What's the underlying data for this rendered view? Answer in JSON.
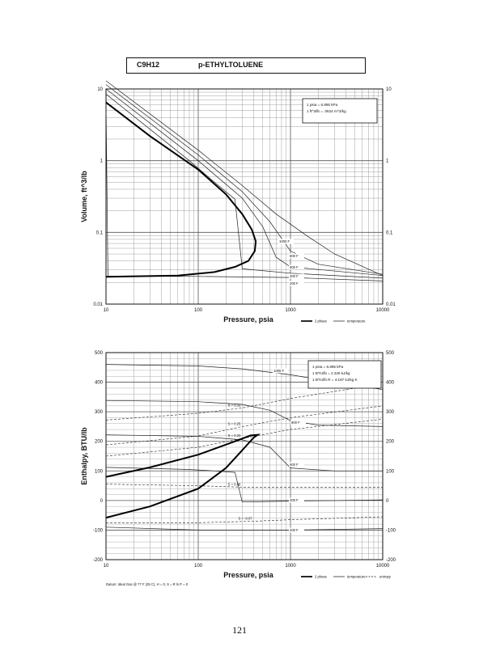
{
  "header": {
    "formula": "C9H12",
    "name": "p-ETHYLTOLUENE"
  },
  "page_number": "121",
  "chart_data": [
    {
      "type": "line",
      "xlabel": "Pressure,  psia",
      "ylabel": "Volume, ft^3/lb",
      "x_scale": "log",
      "y_scale": "log",
      "xlim": [
        10,
        10000
      ],
      "ylim": [
        0.01,
        10
      ],
      "x_ticks": [
        "10",
        "100",
        "1000",
        "10000"
      ],
      "y_ticks_left": [
        "0.01",
        "0.1",
        "1",
        "10"
      ],
      "y_ticks_right": [
        "0.01",
        "0.1",
        "1",
        "10"
      ],
      "grid": true,
      "legend_position": "bottom-right",
      "legend": [
        {
          "label": "2 phase",
          "style": "thick"
        },
        {
          "label": "temperature",
          "style": "thin"
        }
      ],
      "conversion_notes": [
        "1 psia = 6.895 kPa",
        "1 ft^3/lb = .0624 m^3/kg"
      ],
      "two_phase": [
        {
          "x": 10,
          "y": 6.5
        },
        {
          "x": 30,
          "y": 2.2
        },
        {
          "x": 100,
          "y": 0.75
        },
        {
          "x": 200,
          "y": 0.34
        },
        {
          "x": 300,
          "y": 0.18
        },
        {
          "x": 380,
          "y": 0.11
        },
        {
          "x": 420,
          "y": 0.075
        },
        {
          "x": 410,
          "y": 0.055
        },
        {
          "x": 350,
          "y": 0.04
        },
        {
          "x": 250,
          "y": 0.033
        },
        {
          "x": 150,
          "y": 0.028
        },
        {
          "x": 60,
          "y": 0.025
        },
        {
          "x": 10,
          "y": 0.024
        }
      ],
      "series": [
        {
          "name": "1000 F",
          "values": [
            {
              "x": 10,
              "y": 13
            },
            {
              "x": 100,
              "y": 1.4
            },
            {
              "x": 300,
              "y": 0.45
            },
            {
              "x": 700,
              "y": 0.18
            },
            {
              "x": 1500,
              "y": 0.09
            },
            {
              "x": 3000,
              "y": 0.05
            },
            {
              "x": 10000,
              "y": 0.025
            }
          ]
        },
        {
          "name": "800 F",
          "values": [
            {
              "x": 10,
              "y": 11.5
            },
            {
              "x": 100,
              "y": 1.2
            },
            {
              "x": 300,
              "y": 0.37
            },
            {
              "x": 600,
              "y": 0.14
            },
            {
              "x": 1000,
              "y": 0.055
            },
            {
              "x": 2000,
              "y": 0.036
            },
            {
              "x": 10000,
              "y": 0.026
            }
          ]
        },
        {
          "name": "600 F",
          "values": [
            {
              "x": 10,
              "y": 10
            },
            {
              "x": 100,
              "y": 1.0
            },
            {
              "x": 300,
              "y": 0.3
            },
            {
              "x": 500,
              "y": 0.12
            },
            {
              "x": 700,
              "y": 0.045
            },
            {
              "x": 1000,
              "y": 0.033
            },
            {
              "x": 10000,
              "y": 0.025
            }
          ]
        },
        {
          "name": "400 F",
          "values": [
            {
              "x": 10,
              "y": 8.5
            },
            {
              "x": 80,
              "y": 1.0
            },
            {
              "x": 150,
              "y": 0.5
            },
            {
              "x": 250,
              "y": 0.29
            },
            {
              "x": 300,
              "y": 0.031
            },
            {
              "x": 1000,
              "y": 0.027
            },
            {
              "x": 10000,
              "y": 0.023
            }
          ]
        },
        {
          "name": "200 F",
          "values": [
            {
              "x": 10,
              "y": 6.5
            },
            {
              "x": 10.5,
              "y": 0.0245
            },
            {
              "x": 100,
              "y": 0.0243
            },
            {
              "x": 1000,
              "y": 0.0235
            },
            {
              "x": 10000,
              "y": 0.021
            }
          ]
        }
      ],
      "curve_labels": [
        "1000 F",
        "800 F",
        "600 F",
        "400 F",
        "200 F"
      ]
    },
    {
      "type": "line",
      "xlabel": "Pressure,  psia",
      "ylabel": "Enthalpy, BTU/lb",
      "x_scale": "log",
      "xlim": [
        10,
        10000
      ],
      "ylim": [
        -200,
        500
      ],
      "x_ticks": [
        "10",
        "100",
        "1000",
        "10000"
      ],
      "y_ticks_left": [
        "-200",
        "-100",
        "0",
        "100",
        "200",
        "300",
        "400",
        "500"
      ],
      "y_ticks_right": [
        "-200",
        "-100",
        "0",
        "100",
        "200",
        "300",
        "400",
        "500"
      ],
      "grid": true,
      "legend_position": "bottom-right",
      "legend": [
        {
          "label": "2 phase",
          "style": "thick"
        },
        {
          "label": "temperature",
          "style": "thin"
        },
        {
          "label": "entropy",
          "style": "dashed"
        }
      ],
      "conversion_notes": [
        "1 psia = 6.895 kPa",
        "1 BTU/lb = 2.326 kJ/kg",
        "1 BTU/lb R = 4.187 kJ/kg K"
      ],
      "footnote": "Datum: Ideal Gas @ 77 F (25 C),  H = 0,  S = R ln P = 0",
      "two_phase": [
        {
          "x": 10,
          "y": -58
        },
        {
          "x": 30,
          "y": -20
        },
        {
          "x": 100,
          "y": 40
        },
        {
          "x": 200,
          "y": 110
        },
        {
          "x": 300,
          "y": 170
        },
        {
          "x": 400,
          "y": 213
        },
        {
          "x": 440,
          "y": 222
        },
        {
          "x": 370,
          "y": 220
        },
        {
          "x": 250,
          "y": 200
        },
        {
          "x": 100,
          "y": 155
        },
        {
          "x": 30,
          "y": 112
        },
        {
          "x": 10,
          "y": 80
        }
      ],
      "series": [
        {
          "name": "1000 F",
          "values": [
            {
              "x": 10,
              "y": 460
            },
            {
              "x": 100,
              "y": 455
            },
            {
              "x": 300,
              "y": 445
            },
            {
              "x": 1000,
              "y": 425
            },
            {
              "x": 3000,
              "y": 400
            },
            {
              "x": 10000,
              "y": 375
            }
          ]
        },
        {
          "name": "800 F",
          "values": [
            {
              "x": 10,
              "y": 338
            },
            {
              "x": 100,
              "y": 334
            },
            {
              "x": 300,
              "y": 325
            },
            {
              "x": 600,
              "y": 305
            },
            {
              "x": 1000,
              "y": 270
            },
            {
              "x": 2000,
              "y": 255
            },
            {
              "x": 10000,
              "y": 250
            }
          ]
        },
        {
          "name": "600 F",
          "values": [
            {
              "x": 10,
              "y": 222
            },
            {
              "x": 100,
              "y": 217
            },
            {
              "x": 300,
              "y": 205
            },
            {
              "x": 600,
              "y": 180
            },
            {
              "x": 1000,
              "y": 110
            },
            {
              "x": 3000,
              "y": 100
            },
            {
              "x": 10000,
              "y": 100
            }
          ]
        },
        {
          "name": "400 F",
          "values": [
            {
              "x": 10,
              "y": 112
            },
            {
              "x": 80,
              "y": 105
            },
            {
              "x": 150,
              "y": 100
            },
            {
              "x": 250,
              "y": 95
            },
            {
              "x": 300,
              "y": -5
            },
            {
              "x": 1000,
              "y": -2
            },
            {
              "x": 10000,
              "y": 2
            }
          ]
        },
        {
          "name": "200 F",
          "values": [
            {
              "x": 10,
              "y": -90
            },
            {
              "x": 100,
              "y": -100
            },
            {
              "x": 1000,
              "y": -100
            },
            {
              "x": 10000,
              "y": -95
            }
          ]
        }
      ],
      "entropy_lines": [
        {
          "label": "S = 0.33",
          "values": [
            {
              "x": 10,
              "y": 272
            },
            {
              "x": 100,
              "y": 295
            },
            {
              "x": 300,
              "y": 313
            },
            {
              "x": 1000,
              "y": 345
            },
            {
              "x": 10000,
              "y": 395
            }
          ]
        },
        {
          "label": "S = 0.25",
          "values": [
            {
              "x": 10,
              "y": 188
            },
            {
              "x": 100,
              "y": 218
            },
            {
              "x": 300,
              "y": 250
            },
            {
              "x": 1000,
              "y": 280
            },
            {
              "x": 10000,
              "y": 320
            }
          ]
        },
        {
          "label": "S = 0.23",
          "values": [
            {
              "x": 10,
              "y": 150
            },
            {
              "x": 100,
              "y": 180
            },
            {
              "x": 300,
              "y": 210
            },
            {
              "x": 1000,
              "y": 240
            },
            {
              "x": 10000,
              "y": 275
            }
          ]
        },
        {
          "label": "S = 0.08",
          "values": [
            {
              "x": 10,
              "y": 55
            },
            {
              "x": 100,
              "y": 50
            },
            {
              "x": 300,
              "y": 45
            },
            {
              "x": 1000,
              "y": 45
            },
            {
              "x": 10000,
              "y": 45
            }
          ]
        },
        {
          "label": "S = -0.07",
          "values": [
            {
              "x": 10,
              "y": -75
            },
            {
              "x": 100,
              "y": -75
            },
            {
              "x": 400,
              "y": -70
            },
            {
              "x": 1000,
              "y": -65
            },
            {
              "x": 10000,
              "y": -55
            }
          ]
        }
      ],
      "curve_labels": [
        "1000 F",
        "800 F",
        "600 F",
        "400 F",
        "200 F"
      ]
    }
  ]
}
